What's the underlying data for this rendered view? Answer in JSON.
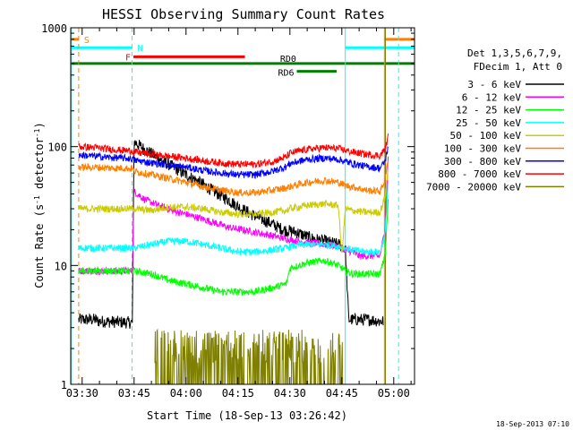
{
  "chart_data": {
    "type": "line",
    "title": "HESSI Observing Summary Count Rates",
    "xlabel": "Start Time (18-Sep-13 03:26:42)",
    "ylabel_main": "Count Rate (s",
    "ylabel_sup1": "-1",
    "ylabel_mid": " detector",
    "ylabel_sup2": "-1",
    "ylabel_end": ")",
    "yscale": "log",
    "ylim": [
      1,
      1000
    ],
    "xlim_minutes": [
      206.7,
      306.0
    ],
    "x_ticks": [
      {
        "min": 210,
        "label": "03:30"
      },
      {
        "min": 225,
        "label": "03:45"
      },
      {
        "min": 240,
        "label": "04:00"
      },
      {
        "min": 255,
        "label": "04:15"
      },
      {
        "min": 270,
        "label": "04:30"
      },
      {
        "min": 285,
        "label": "04:45"
      },
      {
        "min": 300,
        "label": "05:00"
      }
    ],
    "y_ticks": [
      {
        "value": 1,
        "label": "1"
      },
      {
        "value": 10,
        "label": "10"
      },
      {
        "value": 100,
        "label": "100"
      },
      {
        "value": 1000,
        "label": "1000"
      }
    ],
    "timestamp": "18-Sep-2013 07:10",
    "legend": {
      "placement": "right",
      "header": [
        "Det 1,3,5,6,7,9,",
        "FDecim 1, Att 0"
      ],
      "entries": [
        {
          "label": "3 - 6 keV",
          "color": "#000000"
        },
        {
          "label": "6 - 12 keV",
          "color": "#ff00ff"
        },
        {
          "label": "12 - 25 keV",
          "color": "#00ff00"
        },
        {
          "label": "25 - 50 keV",
          "color": "#00ffff"
        },
        {
          "label": "50 - 100 keV",
          "color": "#cccc00"
        },
        {
          "label": "100 - 300 keV",
          "color": "#ff7f00"
        },
        {
          "label": "300 - 800 keV",
          "color": "#0000ff"
        },
        {
          "label": "800 - 7000 keV",
          "color": "#ff0000"
        },
        {
          "label": "7000 - 20000 keV",
          "color": "#808000"
        }
      ]
    },
    "series": [
      {
        "name": "3 - 6 keV",
        "color": "#000000",
        "x": [
          209,
          214,
          214.5,
          224.5,
          225,
          228,
          232,
          236,
          240,
          244,
          248,
          252,
          256,
          260,
          264,
          268,
          272,
          276,
          280,
          284,
          286,
          287,
          290,
          293,
          296,
          297
        ],
        "y": [
          3.5,
          3.5,
          3.4,
          3.3,
          110,
          95,
          80,
          68,
          58,
          50,
          42,
          36,
          30,
          26,
          23,
          20,
          19,
          17,
          16,
          15,
          14,
          3.5,
          3.5,
          3.5,
          3.4,
          3.4
        ]
      },
      {
        "name": "6 - 12 keV",
        "color": "#ff00ff",
        "x": [
          209,
          214,
          214.5,
          224.5,
          225,
          228,
          232,
          236,
          240,
          244,
          248,
          252,
          256,
          260,
          264,
          268,
          272,
          276,
          280,
          284,
          286,
          288,
          290,
          293,
          296,
          297.5,
          298.5
        ],
        "y": [
          9,
          9,
          9,
          9,
          42,
          36,
          32,
          29,
          27,
          25,
          23,
          21,
          20,
          19,
          18,
          17,
          16,
          15.5,
          15,
          14.5,
          13.5,
          13,
          12,
          12,
          12,
          20,
          95
        ]
      },
      {
        "name": "12 - 25 keV",
        "color": "#00ff00",
        "x": [
          209,
          214,
          218,
          222,
          224.5,
          225,
          230,
          235,
          240,
          245,
          250,
          255,
          260,
          265,
          269,
          270,
          275,
          280,
          284,
          286,
          288,
          292,
          296,
          297.5,
          298.5
        ],
        "y": [
          9,
          9,
          9,
          9,
          9,
          9,
          8.5,
          7.5,
          7,
          6.5,
          6,
          6,
          6,
          6.5,
          7,
          9.5,
          10.5,
          11,
          10,
          9,
          8.5,
          8.5,
          8.5,
          12,
          40
        ]
      },
      {
        "name": "25 - 50 keV",
        "color": "#00ffff",
        "x": [
          209,
          214,
          218,
          222,
          224.5,
          225,
          230,
          235,
          240,
          245,
          250,
          255,
          260,
          265,
          269,
          270,
          275,
          280,
          284,
          286,
          288,
          292,
          296,
          297.5,
          298.5
        ],
        "y": [
          14,
          14,
          14,
          14,
          14,
          14,
          15,
          16,
          16,
          15,
          14,
          13,
          13,
          13.5,
          14,
          14.5,
          15,
          15,
          14.5,
          14,
          13.5,
          13,
          13,
          18,
          60
        ]
      },
      {
        "name": "50 - 100 keV",
        "color": "#cccc00",
        "x": [
          209,
          214,
          218,
          222,
          224.5,
          225,
          230,
          235,
          240,
          245,
          250,
          255,
          260,
          265,
          269,
          270,
          275,
          280,
          284,
          285,
          286,
          288,
          292,
          296,
          297.5,
          298.5
        ],
        "y": [
          30,
          30,
          30,
          30,
          30,
          30,
          29,
          31,
          31,
          30,
          28,
          27,
          27,
          28,
          29,
          30,
          32,
          33,
          32,
          12,
          30,
          29,
          28,
          28,
          38,
          70
        ]
      },
      {
        "name": "100 - 300 keV",
        "color": "#ff7f00",
        "x": [
          209,
          214,
          218,
          222,
          224.5,
          225,
          230,
          235,
          240,
          245,
          250,
          255,
          260,
          265,
          269,
          270,
          275,
          280,
          284,
          286,
          288,
          292,
          296,
          297.5,
          298.5
        ],
        "y": [
          67,
          67,
          66,
          66,
          65,
          62,
          58,
          54,
          50,
          46,
          43,
          41,
          41,
          43,
          45,
          46,
          50,
          52,
          50,
          47,
          46,
          43,
          42,
          52,
          85
        ]
      },
      {
        "name": "300 - 800 keV",
        "color": "#0000ff",
        "x": [
          209,
          214,
          218,
          222,
          224.5,
          225,
          230,
          235,
          240,
          245,
          250,
          255,
          260,
          265,
          269,
          270,
          275,
          280,
          284,
          286,
          288,
          292,
          296,
          297.5,
          298.5
        ],
        "y": [
          85,
          83,
          81,
          80,
          79,
          77,
          73,
          70,
          67,
          63,
          60,
          58,
          58,
          62,
          68,
          72,
          78,
          80,
          78,
          75,
          72,
          68,
          66,
          75,
          105
        ]
      },
      {
        "name": "800 - 7000 keV",
        "color": "#ff0000",
        "x": [
          209,
          214,
          218,
          222,
          224.5,
          225,
          230,
          235,
          240,
          245,
          250,
          255,
          260,
          265,
          269,
          270,
          275,
          280,
          284,
          286,
          288,
          292,
          296,
          297.5,
          298.5
        ],
        "y": [
          100,
          98,
          95,
          93,
          92,
          90,
          86,
          83,
          80,
          76,
          73,
          71,
          71,
          75,
          82,
          88,
          95,
          98,
          96,
          93,
          90,
          86,
          84,
          95,
          125
        ]
      },
      {
        "name": "7000 - 20000 keV",
        "color": "#808000",
        "x": [
          231,
          234,
          237,
          240,
          243,
          246,
          249,
          267,
          270,
          272,
          274,
          276,
          278,
          280,
          282,
          284,
          286
        ],
        "y": [
          2,
          1.5,
          2,
          1.5,
          2,
          1.5,
          2,
          2,
          1.5,
          2,
          2.5,
          1.5,
          3,
          2,
          2.5,
          1.5,
          2
        ]
      }
    ],
    "vertical_lines": [
      {
        "min": 209.0,
        "color": "#ff7f00",
        "style": "dashed"
      },
      {
        "min": 206.9,
        "color": "#00ffff",
        "style": "solid"
      },
      {
        "min": 224.4,
        "color": "#00ffff",
        "style": "dashed"
      },
      {
        "min": 286.0,
        "color": "#00ffff",
        "style": "solid"
      },
      {
        "min": 297.3,
        "color": "#ff7f00",
        "style": "solid"
      },
      {
        "min": 297.6,
        "color": "#808000",
        "style": "solid"
      },
      {
        "min": 301.4,
        "color": "#00ffff",
        "style": "dashed"
      }
    ],
    "flag_bars": [
      {
        "label": "S",
        "color": "#ff7f00",
        "segments": [
          [
            206.7,
            209.0
          ],
          [
            297.3,
            306.0
          ]
        ],
        "y": 800
      },
      {
        "label": "N",
        "color": "#00ffff",
        "segments": [
          [
            206.7,
            224.4
          ],
          [
            286.0,
            306.0
          ]
        ],
        "y": 680
      },
      {
        "label": "F",
        "color": "#ff0000",
        "segments": [
          [
            224.8,
            257.0
          ]
        ],
        "y": 570
      },
      {
        "label": "RD0",
        "color": "#008000",
        "segments": [
          [
            206.7,
            306.0
          ]
        ],
        "y": 500
      },
      {
        "label": "RD6",
        "color": "#008000",
        "segments": [
          [
            272.0,
            283.5
          ]
        ],
        "y": 430
      }
    ]
  }
}
